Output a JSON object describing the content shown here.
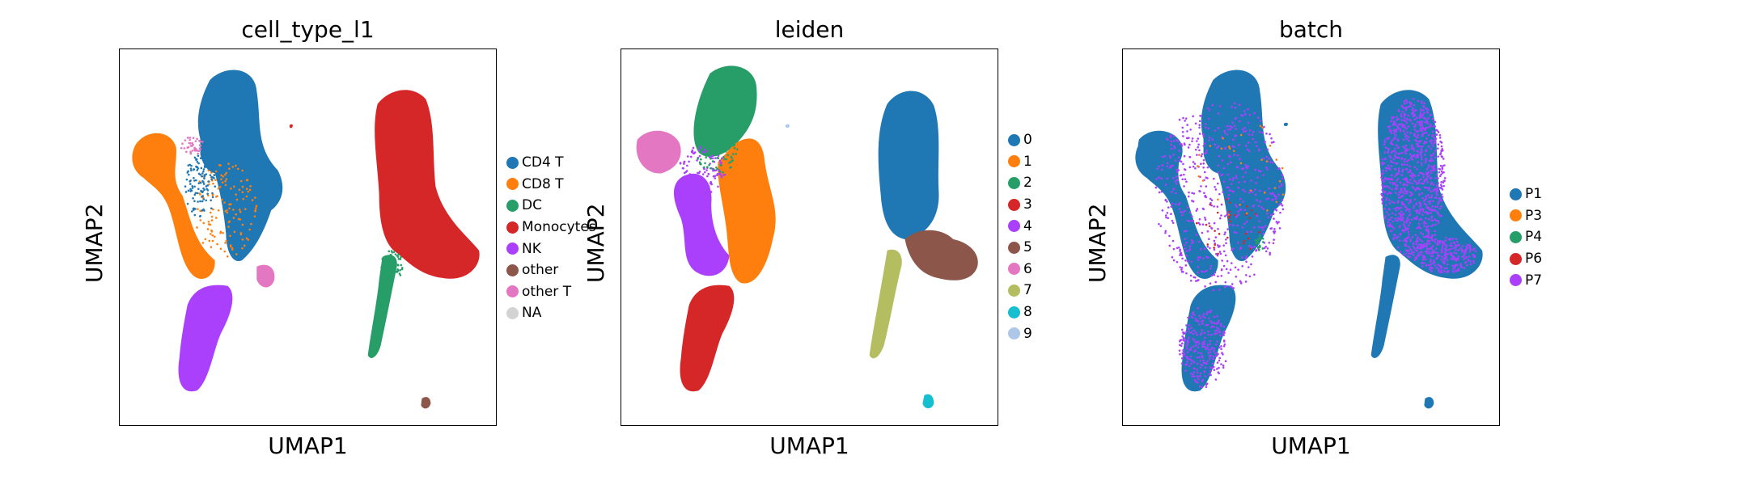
{
  "chart_data": [
    {
      "type": "scatter",
      "title": "cell_type_l1",
      "xlabel": "UMAP1",
      "ylabel": "UMAP2",
      "grid": false,
      "legend_position": "right",
      "legend": [
        {
          "name": "CD4 T",
          "color": "#1f77b4"
        },
        {
          "name": "CD8 T",
          "color": "#ff7f0e"
        },
        {
          "name": "DC",
          "color": "#279e68"
        },
        {
          "name": "Monocytes",
          "color": "#d62728"
        },
        {
          "name": "NK",
          "color": "#aa40fc"
        },
        {
          "name": "other",
          "color": "#8c564b"
        },
        {
          "name": "other T",
          "color": "#e377c2"
        },
        {
          "name": "NA",
          "color": "#d3d3d3"
        }
      ]
    },
    {
      "type": "scatter",
      "title": "leiden",
      "xlabel": "UMAP1",
      "ylabel": "UMAP2",
      "grid": false,
      "legend_position": "right",
      "legend": [
        {
          "name": "0",
          "color": "#1f77b4"
        },
        {
          "name": "1",
          "color": "#ff7f0e"
        },
        {
          "name": "2",
          "color": "#279e68"
        },
        {
          "name": "3",
          "color": "#d62728"
        },
        {
          "name": "4",
          "color": "#aa40fc"
        },
        {
          "name": "5",
          "color": "#8c564b"
        },
        {
          "name": "6",
          "color": "#e377c2"
        },
        {
          "name": "7",
          "color": "#b5bd61"
        },
        {
          "name": "8",
          "color": "#17becf"
        },
        {
          "name": "9",
          "color": "#aec7e8"
        }
      ]
    },
    {
      "type": "scatter",
      "title": "batch",
      "xlabel": "UMAP1",
      "ylabel": "UMAP2",
      "grid": false,
      "legend_position": "right",
      "legend": [
        {
          "name": "P1",
          "color": "#1f77b4"
        },
        {
          "name": "P3",
          "color": "#ff7f0e"
        },
        {
          "name": "P4",
          "color": "#279e68"
        },
        {
          "name": "P6",
          "color": "#d62728"
        },
        {
          "name": "P7",
          "color": "#aa40fc"
        }
      ]
    }
  ]
}
